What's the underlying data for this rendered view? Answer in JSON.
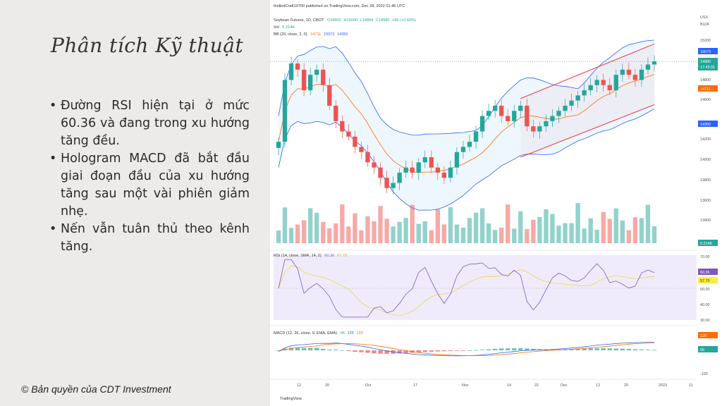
{
  "slide": {
    "title": "Phân tích Kỹ thuật",
    "bullets": [
      "Đường RSI hiện tại ở mức 60.36 và đang trong xu hướng tăng đều.",
      "Hologram MACD đã bắt đầu giai đoạn đầu của xu hướng tăng sau một vài phiên giảm nhẹ.",
      "Nến vẫn tuân thủ theo kênh tăng."
    ],
    "copyright": "© Bản quyền của CDT Investment"
  },
  "chart": {
    "publish_line": "thrilledCraft10700 published on TradingView.com, Dec 28, 2022 01:46 UTC",
    "symbol_line": "Soybean Futures, 1D, CBOT",
    "ohlc": {
      "o": "O14902",
      "h": "H15000",
      "l": "L14894",
      "c": "C14980",
      "chg": "+90 (+0.60%)"
    },
    "vol_line": {
      "label": "Vol",
      "value": "5.214K"
    },
    "bb_line": {
      "label": "BB (20, close, 2, 0)",
      "mid": "14711",
      "upper": "15073",
      "lower": "14350"
    },
    "currency": "USX",
    "bu_label": "BU/A",
    "price_ticks": [
      "15200",
      "14800",
      "14600",
      "14200",
      "14000",
      "13800",
      "13600",
      "13400"
    ],
    "price_tags": {
      "upper": "15073",
      "last": "14980",
      "countdown": "17:43:31",
      "mid": "14711",
      "lower": "14350",
      "vol": "5.214K"
    },
    "rsi_line": {
      "label": "RSI (14, close, SMA, 14, 2)",
      "rsi": "60.36",
      "sma": "57.70"
    },
    "rsi_ticks": [
      "70.00",
      "50.00",
      "40.00",
      "30.00"
    ],
    "macd_line": {
      "label": "MACD (12, 26, close, 9, EMA, EMA)",
      "hist": "06",
      "macd": "125",
      "signal": "120"
    },
    "macd_ticks": [
      "-100"
    ],
    "x_ticks": [
      "12",
      "20",
      "Oct",
      "17",
      "Nov",
      "14",
      "22",
      "Dec",
      "12",
      "20",
      "2023",
      "11"
    ],
    "watermark": "TradingView",
    "colors": {
      "up": "#26a69a",
      "down": "#ef5350",
      "bb": "#2962ff",
      "basis": "#ff6d00",
      "rsi": "#7e57c2",
      "channel": "#f23645"
    }
  },
  "chart_data": {
    "type": "candlestick",
    "title": "Soybean Futures, 1D, CBOT",
    "bollinger_bands_current": {
      "basis": 14711,
      "upper": 15073,
      "lower": 14350
    },
    "last_close": 14980,
    "volume_last": "5.214K",
    "rsi": {
      "value": 60.36,
      "sma": 57.7,
      "levels": [
        70,
        50,
        40,
        30
      ]
    },
    "macd": {
      "histogram": 6,
      "macd": 125,
      "signal": 120
    },
    "ylim": [
      13400,
      15200
    ],
    "candles_close": [
      14200,
      14800,
      14960,
      14900,
      14700,
      14850,
      14900,
      14750,
      14550,
      14400,
      14300,
      14250,
      14150,
      14100,
      14000,
      13950,
      13850,
      13750,
      13800,
      13900,
      13950,
      13900,
      14000,
      14050,
      13950,
      13900,
      13850,
      13950,
      14100,
      14150,
      14200,
      14300,
      14450,
      14500,
      14550,
      14450,
      14400,
      14500,
      14550,
      14350,
      14300,
      14350,
      14400,
      14450,
      14500,
      14550,
      14600,
      14650,
      14700,
      14750,
      14800,
      14750,
      14700,
      14850,
      14900,
      14850,
      14800,
      14900,
      14950,
      14980
    ]
  }
}
